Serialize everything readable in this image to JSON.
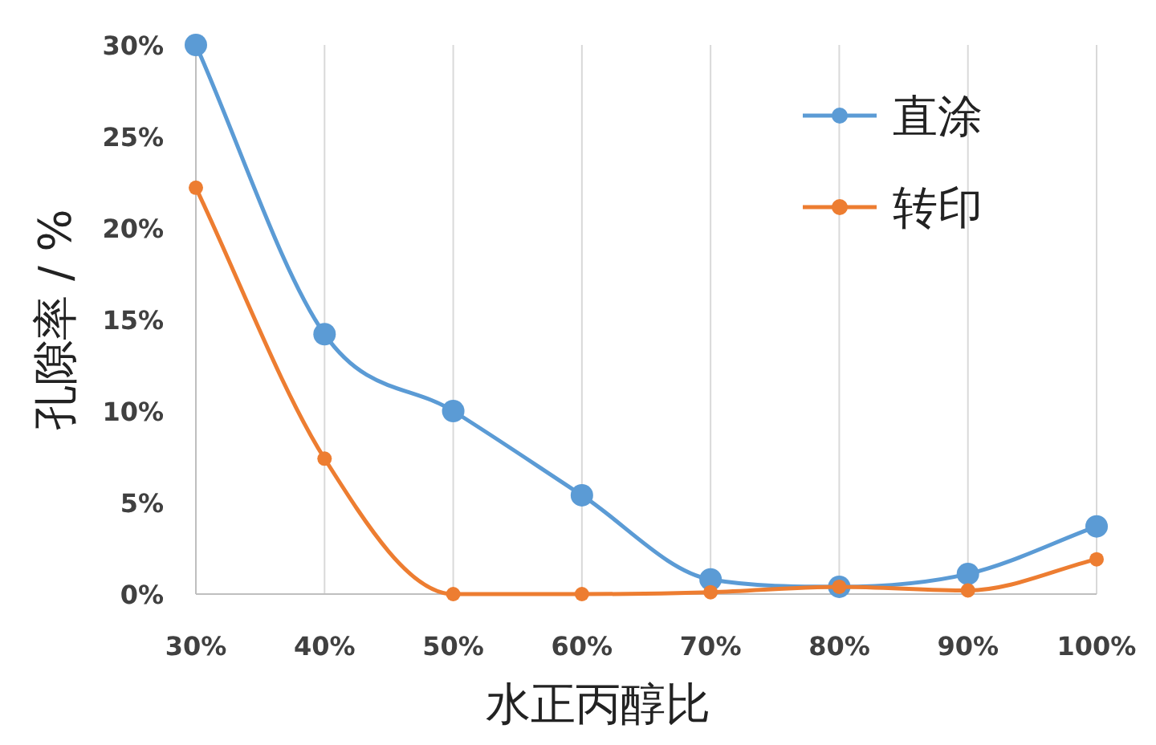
{
  "chart_data": {
    "type": "line",
    "xlabel": "水正丙醇比",
    "ylabel": "孔隙率 / %",
    "x": [
      30,
      40,
      50,
      60,
      70,
      80,
      90,
      100
    ],
    "series": [
      {
        "name": "直涂",
        "color": "#5b9bd5",
        "values": [
          30,
          14.2,
          10,
          5.4,
          0.8,
          0.4,
          1.1,
          3.7
        ]
      },
      {
        "name": "转印",
        "color": "#ed7d31",
        "values": [
          22.2,
          7.4,
          0,
          0,
          0.1,
          0.4,
          0.2,
          1.9
        ]
      }
    ],
    "xlim": [
      30,
      100
    ],
    "xticks": [
      {
        "value": 30,
        "label": "30%"
      },
      {
        "value": 40,
        "label": "40%"
      },
      {
        "value": 50,
        "label": "50%"
      },
      {
        "value": 60,
        "label": "60%"
      },
      {
        "value": 70,
        "label": "70%"
      },
      {
        "value": 80,
        "label": "80%"
      },
      {
        "value": 90,
        "label": "90%"
      },
      {
        "value": 100,
        "label": "100%"
      }
    ],
    "ylim": [
      0,
      30
    ],
    "yticks": [
      {
        "value": 0,
        "label": "0%"
      },
      {
        "value": 5,
        "label": "5%"
      },
      {
        "value": 10,
        "label": "10%"
      },
      {
        "value": 15,
        "label": "15%"
      },
      {
        "value": 20,
        "label": "20%"
      },
      {
        "value": 25,
        "label": "25%"
      },
      {
        "value": 30,
        "label": "30%"
      }
    ],
    "grid": "x",
    "legend": "top right",
    "marker": "circle",
    "line_style": "solid"
  }
}
